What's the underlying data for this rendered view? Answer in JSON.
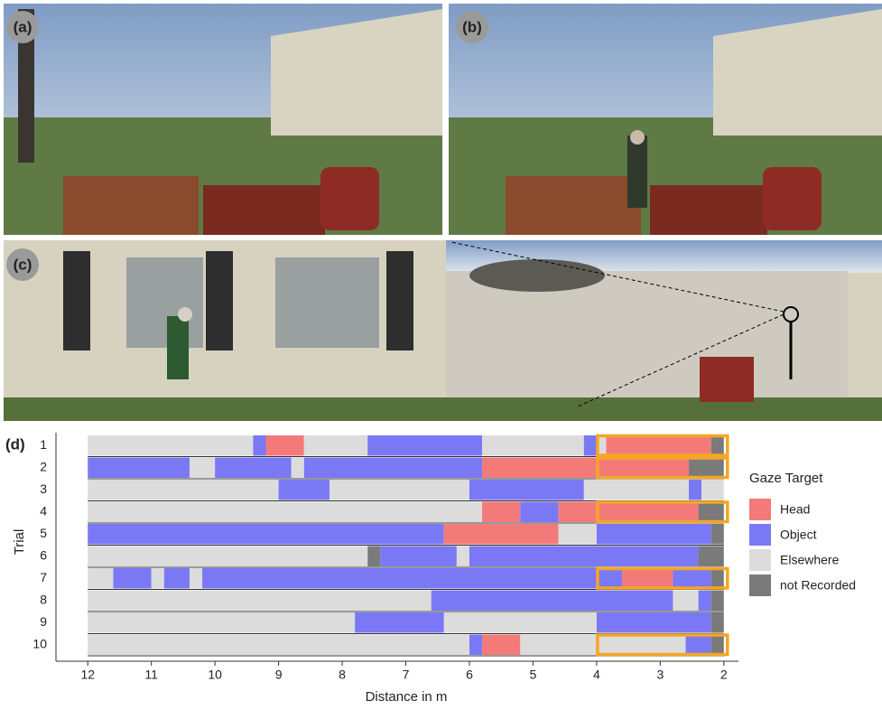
{
  "panels": {
    "a": "(a)",
    "b": "(b)",
    "c": "(c)",
    "d": "(d)"
  },
  "chart_data": {
    "type": "timeline",
    "xlabel": "Distance in m",
    "ylabel": "Trial",
    "xlim": [
      12.5,
      1.77
    ],
    "xticks": [
      12,
      11,
      10,
      9,
      8,
      7,
      6,
      5,
      4,
      3,
      2
    ],
    "legend_title": "Gaze Target",
    "series": [
      {
        "name": "Head",
        "color": "#f47a7a"
      },
      {
        "name": "Object",
        "color": "#7b78f5"
      },
      {
        "name": "Elsewhere",
        "color": "#dcdcdc"
      },
      {
        "name": "not Recorded",
        "color": "#7a7a7a"
      }
    ],
    "highlight_range": [
      4,
      2
    ],
    "highlight_color": "#f5a623",
    "rows": [
      {
        "label": "1",
        "highlight": true,
        "segments": [
          {
            "start": 12,
            "end": 9.4,
            "target": "Elsewhere"
          },
          {
            "start": 9.4,
            "end": 9.2,
            "target": "Object"
          },
          {
            "start": 9.2,
            "end": 8.6,
            "target": "Head"
          },
          {
            "start": 8.6,
            "end": 7.6,
            "target": "Elsewhere"
          },
          {
            "start": 7.6,
            "end": 5.8,
            "target": "Object"
          },
          {
            "start": 5.8,
            "end": 4.2,
            "target": "Elsewhere"
          },
          {
            "start": 4.2,
            "end": 4.0,
            "target": "Object"
          },
          {
            "start": 4.0,
            "end": 3.85,
            "target": "Elsewhere"
          },
          {
            "start": 3.85,
            "end": 2.2,
            "target": "Head"
          },
          {
            "start": 2.2,
            "end": 2.0,
            "target": "not Recorded"
          }
        ]
      },
      {
        "label": "2",
        "highlight": true,
        "segments": [
          {
            "start": 12,
            "end": 10.4,
            "target": "Object"
          },
          {
            "start": 10.4,
            "end": 10.0,
            "target": "Elsewhere"
          },
          {
            "start": 10.0,
            "end": 8.8,
            "target": "Object"
          },
          {
            "start": 8.8,
            "end": 8.6,
            "target": "Elsewhere"
          },
          {
            "start": 8.6,
            "end": 5.8,
            "target": "Object"
          },
          {
            "start": 5.8,
            "end": 2.55,
            "target": "Head"
          },
          {
            "start": 2.55,
            "end": 2.0,
            "target": "not Recorded"
          }
        ]
      },
      {
        "label": "3",
        "highlight": false,
        "segments": [
          {
            "start": 12,
            "end": 9.0,
            "target": "Elsewhere"
          },
          {
            "start": 9.0,
            "end": 8.2,
            "target": "Object"
          },
          {
            "start": 8.2,
            "end": 6.0,
            "target": "Elsewhere"
          },
          {
            "start": 6.0,
            "end": 4.2,
            "target": "Object"
          },
          {
            "start": 4.2,
            "end": 2.55,
            "target": "Elsewhere"
          },
          {
            "start": 2.55,
            "end": 2.35,
            "target": "Object"
          },
          {
            "start": 2.35,
            "end": 2.0,
            "target": "Elsewhere"
          }
        ]
      },
      {
        "label": "4",
        "highlight": true,
        "segments": [
          {
            "start": 12,
            "end": 5.8,
            "target": "Elsewhere"
          },
          {
            "start": 5.8,
            "end": 5.2,
            "target": "Head"
          },
          {
            "start": 5.2,
            "end": 4.6,
            "target": "Object"
          },
          {
            "start": 4.6,
            "end": 2.4,
            "target": "Head"
          },
          {
            "start": 2.4,
            "end": 2.0,
            "target": "not Recorded"
          }
        ]
      },
      {
        "label": "5",
        "highlight": false,
        "segments": [
          {
            "start": 12,
            "end": 6.4,
            "target": "Object"
          },
          {
            "start": 6.4,
            "end": 4.6,
            "target": "Head"
          },
          {
            "start": 4.6,
            "end": 4.0,
            "target": "Elsewhere"
          },
          {
            "start": 4.0,
            "end": 2.2,
            "target": "Object"
          },
          {
            "start": 2.2,
            "end": 2.0,
            "target": "not Recorded"
          }
        ]
      },
      {
        "label": "6",
        "highlight": false,
        "segments": [
          {
            "start": 12,
            "end": 7.6,
            "target": "Elsewhere"
          },
          {
            "start": 7.6,
            "end": 7.4,
            "target": "not Recorded"
          },
          {
            "start": 7.4,
            "end": 6.2,
            "target": "Object"
          },
          {
            "start": 6.2,
            "end": 6.0,
            "target": "Elsewhere"
          },
          {
            "start": 6.0,
            "end": 2.4,
            "target": "Object"
          },
          {
            "start": 2.4,
            "end": 2.0,
            "target": "not Recorded"
          }
        ]
      },
      {
        "label": "7",
        "highlight": true,
        "segments": [
          {
            "start": 12,
            "end": 11.6,
            "target": "Elsewhere"
          },
          {
            "start": 11.6,
            "end": 11.0,
            "target": "Object"
          },
          {
            "start": 11.0,
            "end": 10.8,
            "target": "Elsewhere"
          },
          {
            "start": 10.8,
            "end": 10.4,
            "target": "Object"
          },
          {
            "start": 10.4,
            "end": 10.2,
            "target": "Elsewhere"
          },
          {
            "start": 10.2,
            "end": 3.6,
            "target": "Object"
          },
          {
            "start": 3.6,
            "end": 2.8,
            "target": "Head"
          },
          {
            "start": 2.8,
            "end": 2.2,
            "target": "Object"
          },
          {
            "start": 2.2,
            "end": 2.0,
            "target": "not Recorded"
          }
        ]
      },
      {
        "label": "8",
        "highlight": false,
        "segments": [
          {
            "start": 12,
            "end": 6.6,
            "target": "Elsewhere"
          },
          {
            "start": 6.6,
            "end": 2.8,
            "target": "Object"
          },
          {
            "start": 2.8,
            "end": 2.4,
            "target": "Elsewhere"
          },
          {
            "start": 2.4,
            "end": 2.2,
            "target": "Object"
          },
          {
            "start": 2.2,
            "end": 2.0,
            "target": "not Recorded"
          }
        ]
      },
      {
        "label": "9",
        "highlight": false,
        "segments": [
          {
            "start": 12,
            "end": 7.8,
            "target": "Elsewhere"
          },
          {
            "start": 7.8,
            "end": 6.4,
            "target": "Object"
          },
          {
            "start": 6.4,
            "end": 4.0,
            "target": "Elsewhere"
          },
          {
            "start": 4.0,
            "end": 2.2,
            "target": "Object"
          },
          {
            "start": 2.2,
            "end": 2.0,
            "target": "not Recorded"
          }
        ]
      },
      {
        "label": "10",
        "highlight": true,
        "segments": [
          {
            "start": 12,
            "end": 6.0,
            "target": "Elsewhere"
          },
          {
            "start": 6.0,
            "end": 5.8,
            "target": "Object"
          },
          {
            "start": 5.8,
            "end": 5.2,
            "target": "Head"
          },
          {
            "start": 5.2,
            "end": 2.6,
            "target": "Elsewhere"
          },
          {
            "start": 2.6,
            "end": 2.2,
            "target": "Object"
          },
          {
            "start": 2.2,
            "end": 2.0,
            "target": "not Recorded"
          }
        ]
      }
    ]
  }
}
